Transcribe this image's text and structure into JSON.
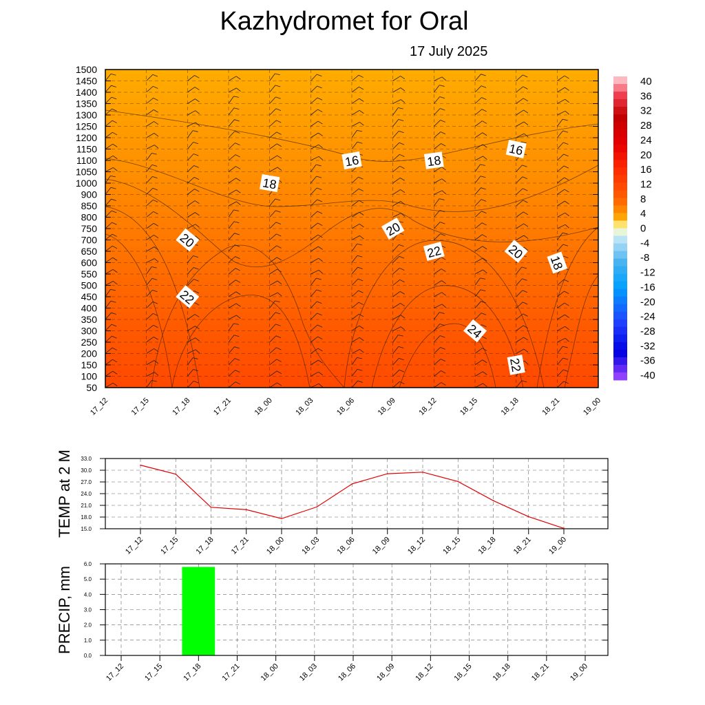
{
  "title": "Kazhydromet  for Oral",
  "subtitle": "17 July 2025",
  "colors": {
    "warm_low": "#e00000",
    "warm_mid": "#ff6a00",
    "warm_high": "#ffb000",
    "temp_line": "#e00000",
    "precip_bar": "#00ff00"
  },
  "chart_data": [
    {
      "type": "heatmap",
      "description_role": "vertical cross-section (temperature contours with wind barbs)",
      "x_tick_labels": [
        "17_12",
        "17_15",
        "17_18",
        "17_21",
        "18_00",
        "18_03",
        "18_06",
        "18_09",
        "18_12",
        "18_15",
        "18_18",
        "18_21",
        "19_00"
      ],
      "y_tick_labels": [
        "1500",
        "1450",
        "1400",
        "1350",
        "1300",
        "1250",
        "1200",
        "1150",
        "1100",
        "1050",
        "1000",
        "900",
        "850",
        "800",
        "750",
        "700",
        "650",
        "600",
        "550",
        "500",
        "450",
        "400",
        "350",
        "300",
        "250",
        "200",
        "150",
        "100",
        "50"
      ],
      "contour_labels": [
        {
          "text": "16",
          "x": "18_06",
          "level": "1100"
        },
        {
          "text": "18",
          "x": "18_12",
          "level": "1100"
        },
        {
          "text": "16",
          "x": "18_18",
          "level": "1150"
        },
        {
          "text": "18",
          "x": "18_00",
          "level": "1000"
        },
        {
          "text": "20",
          "x": "18_09",
          "level": "750"
        },
        {
          "text": "22",
          "x": "18_12",
          "level": "650"
        },
        {
          "text": "20",
          "x": "17_18",
          "level": "700"
        },
        {
          "text": "20",
          "x": "18_18",
          "level": "650"
        },
        {
          "text": "18",
          "x": "18_21",
          "level": "600"
        },
        {
          "text": "22",
          "x": "17_18",
          "level": "450"
        },
        {
          "text": "24",
          "x": "18_15",
          "level": "300"
        },
        {
          "text": "22",
          "x": "18_18",
          "level": "150"
        }
      ],
      "colorbar_labels": [
        "40",
        "36",
        "32",
        "28",
        "24",
        "20",
        "16",
        "12",
        "8",
        "4",
        "0",
        "-4",
        "-8",
        "-12",
        "-16",
        "-20",
        "-24",
        "-28",
        "-32",
        "-36",
        "-40"
      ],
      "colorbar_range": [
        -40,
        40
      ]
    },
    {
      "type": "line",
      "ylabel": "TEMP at 2 M",
      "categories": [
        "17_12",
        "17_15",
        "17_18",
        "17_21",
        "18_00",
        "18_03",
        "18_06",
        "18_09",
        "18_12",
        "18_15",
        "18_18",
        "18_21",
        "19_00"
      ],
      "values": [
        31.3,
        29.0,
        20.5,
        19.9,
        17.6,
        20.6,
        26.5,
        29.1,
        29.5,
        27.1,
        22.2,
        18.1,
        15.1
      ],
      "y_tick_labels": [
        "15.0",
        "18.0",
        "21.0",
        "24.0",
        "27.0",
        "30.0",
        "33.0"
      ],
      "ylim": [
        15,
        33
      ]
    },
    {
      "type": "bar",
      "ylabel": "PRECIP, mm",
      "categories": [
        "17_12",
        "17_15",
        "17_18",
        "17_21",
        "18_00",
        "18_03",
        "18_06",
        "18_09",
        "18_12",
        "18_15",
        "18_18",
        "18_21",
        "19_00"
      ],
      "values": [
        0,
        0,
        5.8,
        0,
        0,
        0,
        0,
        0,
        0,
        0,
        0,
        0,
        0
      ],
      "y_tick_labels": [
        "0.0",
        "1.0",
        "2.0",
        "3.0",
        "4.0",
        "5.0",
        "6.0"
      ],
      "ylim": [
        0,
        6
      ]
    }
  ]
}
